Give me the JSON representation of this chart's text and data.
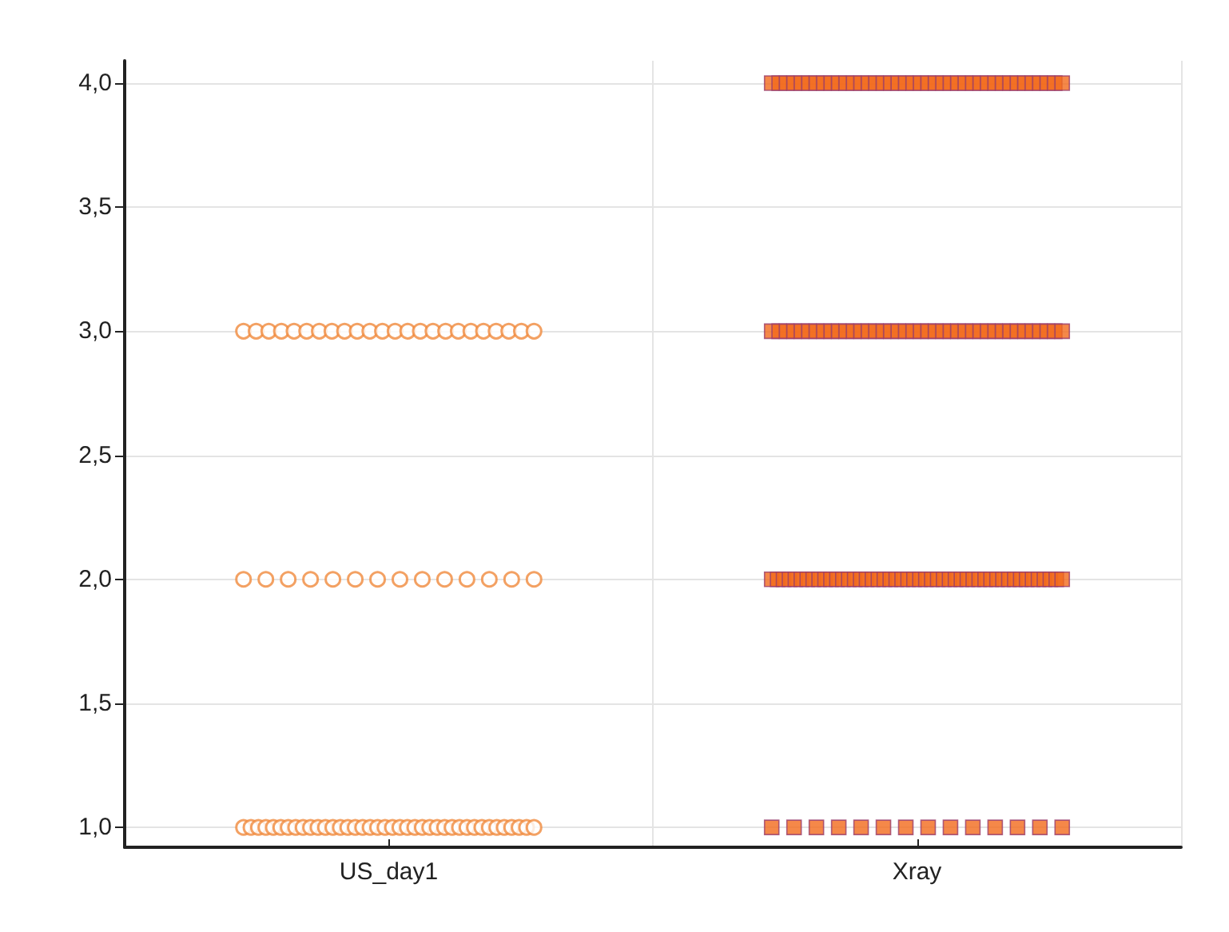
{
  "chart_data": {
    "type": "scatter",
    "categories": [
      "US_day1",
      "Xray"
    ],
    "ylim": [
      0.92,
      4.09
    ],
    "yticks": [
      {
        "value": 1,
        "label": "1,0"
      },
      {
        "value": 1.5,
        "label": "1,5"
      },
      {
        "value": 2,
        "label": "2,0"
      },
      {
        "value": 2.5,
        "label": "2,5"
      },
      {
        "value": 3,
        "label": "3,0"
      },
      {
        "value": 3.5,
        "label": "3,5"
      },
      {
        "value": 4,
        "label": "4,0"
      }
    ],
    "grid": true,
    "series": [
      {
        "color": "#f08a3c",
        "marker": "circle",
        "x": [
          "US_day1",
          "US_day1",
          "US_day1",
          "US_day1",
          "US_day1",
          "US_day1",
          "US_day1",
          "US_day1",
          "US_day1",
          "US_day1",
          "US_day1",
          "US_day1",
          "US_day1",
          "US_day1",
          "US_day1",
          "US_day1",
          "US_day1",
          "US_day1",
          "US_day1",
          "US_day1",
          "US_day1",
          "US_day1",
          "US_day1",
          "US_day1",
          "US_day1",
          "US_day1",
          "US_day1",
          "US_day1",
          "US_day1",
          "US_day1",
          "US_day1",
          "US_day1",
          "US_day1",
          "US_day1",
          "US_day1",
          "US_day1",
          "US_day1",
          "US_day1",
          "US_day1",
          "US_day1",
          "US_day1",
          "US_day1",
          "US_day1",
          "US_day1",
          "US_day1",
          "US_day1",
          "US_day1",
          "US_day1",
          "US_day1",
          "US_day1",
          "US_day1",
          "US_day1",
          "US_day1",
          "US_day1",
          "US_day1",
          "US_day1",
          "US_day1",
          "US_day1",
          "US_day1",
          "US_day1",
          "US_day1",
          "US_day1",
          "US_day1",
          "US_day1",
          "US_day1",
          "US_day1",
          "US_day1",
          "US_day1",
          "US_day1",
          "US_day1",
          "US_day1",
          "US_day1",
          "US_day1",
          "US_day1",
          "US_day1",
          "US_day1",
          "US_day1",
          "US_day1"
        ],
        "values": [
          3,
          3,
          3,
          3,
          3,
          3,
          3,
          3,
          3,
          3,
          3,
          3,
          3,
          3,
          3,
          3,
          3,
          3,
          3,
          3,
          3,
          3,
          3,
          3,
          2,
          2,
          2,
          2,
          2,
          2,
          2,
          2,
          2,
          2,
          2,
          2,
          2,
          2,
          1,
          1,
          1,
          1,
          1,
          1,
          1,
          1,
          1,
          1,
          1,
          1,
          1,
          1,
          1,
          1,
          1,
          1,
          1,
          1,
          1,
          1,
          1,
          1,
          1,
          1,
          1,
          1,
          1,
          1,
          1,
          1,
          1,
          1,
          1,
          1,
          1,
          1,
          1,
          1
        ]
      },
      {
        "color": "#f26a1b",
        "marker": "square",
        "x": [
          "Xray",
          "Xray",
          "Xray",
          "Xray",
          "Xray",
          "Xray",
          "Xray",
          "Xray",
          "Xray",
          "Xray",
          "Xray",
          "Xray",
          "Xray",
          "Xray",
          "Xray",
          "Xray",
          "Xray",
          "Xray",
          "Xray",
          "Xray",
          "Xray",
          "Xray",
          "Xray",
          "Xray",
          "Xray",
          "Xray",
          "Xray",
          "Xray",
          "Xray",
          "Xray",
          "Xray",
          "Xray",
          "Xray",
          "Xray",
          "Xray",
          "Xray",
          "Xray",
          "Xray",
          "Xray",
          "Xray",
          "Xray",
          "Xray",
          "Xray",
          "Xray",
          "Xray",
          "Xray",
          "Xray",
          "Xray",
          "Xray",
          "Xray",
          "Xray",
          "Xray",
          "Xray",
          "Xray",
          "Xray",
          "Xray",
          "Xray",
          "Xray",
          "Xray",
          "Xray",
          "Xray",
          "Xray",
          "Xray",
          "Xray",
          "Xray",
          "Xray",
          "Xray",
          "Xray",
          "Xray",
          "Xray",
          "Xray",
          "Xray",
          "Xray",
          "Xray",
          "Xray",
          "Xray",
          "Xray",
          "Xray",
          "Xray",
          "Xray",
          "Xray",
          "Xray",
          "Xray",
          "Xray",
          "Xray",
          "Xray",
          "Xray",
          "Xray",
          "Xray",
          "Xray",
          "Xray",
          "Xray",
          "Xray",
          "Xray",
          "Xray",
          "Xray",
          "Xray",
          "Xray",
          "Xray",
          "Xray",
          "Xray",
          "Xray",
          "Xray",
          "Xray",
          "Xray",
          "Xray",
          "Xray",
          "Xray",
          "Xray",
          "Xray",
          "Xray",
          "Xray",
          "Xray",
          "Xray",
          "Xray",
          "Xray",
          "Xray",
          "Xray",
          "Xray",
          "Xray",
          "Xray",
          "Xray",
          "Xray",
          "Xray",
          "Xray",
          "Xray",
          "Xray",
          "Xray",
          "Xray",
          "Xray",
          "Xray",
          "Xray",
          "Xray",
          "Xray",
          "Xray",
          "Xray",
          "Xray",
          "Xray",
          "Xray",
          "Xray",
          "Xray",
          "Xray",
          "Xray",
          "Xray"
        ],
        "values": [
          4,
          4,
          4,
          4,
          4,
          4,
          4,
          4,
          4,
          4,
          4,
          4,
          4,
          4,
          4,
          4,
          4,
          4,
          4,
          4,
          4,
          4,
          4,
          4,
          4,
          4,
          4,
          4,
          4,
          4,
          4,
          4,
          4,
          4,
          4,
          4,
          4,
          4,
          4,
          4,
          3,
          3,
          3,
          3,
          3,
          3,
          3,
          3,
          3,
          3,
          3,
          3,
          3,
          3,
          3,
          3,
          3,
          3,
          3,
          3,
          3,
          3,
          3,
          3,
          3,
          3,
          3,
          3,
          3,
          3,
          3,
          3,
          3,
          3,
          3,
          3,
          3,
          3,
          3,
          3,
          2,
          2,
          2,
          2,
          2,
          2,
          2,
          2,
          2,
          2,
          2,
          2,
          2,
          2,
          2,
          2,
          2,
          2,
          2,
          2,
          2,
          2,
          2,
          2,
          2,
          2,
          2,
          2,
          2,
          2,
          2,
          2,
          2,
          2,
          2,
          2,
          2,
          2,
          2,
          2,
          2,
          2,
          2,
          2,
          2,
          2,
          2,
          2,
          2,
          2,
          1,
          1,
          1,
          1,
          1,
          1,
          1,
          1,
          1,
          1,
          1,
          1,
          1,
          1
        ]
      }
    ]
  }
}
